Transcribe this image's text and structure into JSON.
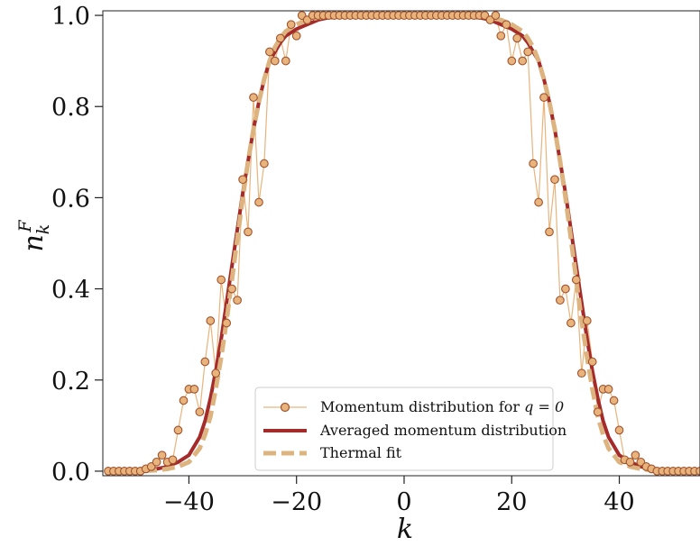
{
  "chart_data": {
    "type": "line",
    "xlabel": "k",
    "ylabel": "n_k^F",
    "xlim": [
      -56,
      55
    ],
    "ylim": [
      -0.01,
      1.01
    ],
    "x_ticks": [
      -40,
      -20,
      0,
      20,
      40
    ],
    "y_ticks": [
      0.0,
      0.2,
      0.4,
      0.6,
      0.8,
      1.0
    ],
    "x_tick_labels": [
      "−40",
      "−20",
      "0",
      "20",
      "40"
    ],
    "y_tick_labels": [
      "0.0",
      "0.2",
      "0.4",
      "0.6",
      "0.8",
      "1.0"
    ],
    "grid": false,
    "legend_position": "lower center",
    "colors": {
      "markers_fill": "#e8b47c",
      "markers_edge": "#a0522d",
      "thin_line": "#e8b47c",
      "averaged": "#a52a2a",
      "thermal": "#ddb47f"
    },
    "series": [
      {
        "name": "Momentum distribution for q = 0",
        "legend_label": "Momentum distribution for ",
        "legend_math": "q = 0",
        "style": "markers-line",
        "x": [
          -55,
          -54,
          -53,
          -52,
          -51,
          -50,
          -49,
          -48,
          -47,
          -46,
          -45,
          -44,
          -43,
          -42,
          -41,
          -40,
          -39,
          -38,
          -37,
          -36,
          -35,
          -34,
          -33,
          -32,
          -31,
          -30,
          -29,
          -28,
          -27,
          -26,
          -25,
          -24,
          -23,
          -22,
          -21,
          -20,
          -19,
          -18,
          -17,
          -16,
          -15,
          -14,
          -13,
          -12,
          -11,
          -10,
          -9,
          -8,
          -7,
          -6,
          -5,
          -4,
          -3,
          -2,
          -1,
          0,
          1,
          2,
          3,
          4,
          5,
          6,
          7,
          8,
          9,
          10,
          11,
          12,
          13,
          14,
          15,
          16,
          17,
          18,
          19,
          20,
          21,
          22,
          23,
          24,
          25,
          26,
          27,
          28,
          29,
          30,
          31,
          32,
          33,
          34,
          35,
          36,
          37,
          38,
          39,
          40,
          41,
          42,
          43,
          44,
          45,
          46,
          47,
          48,
          49,
          50,
          51,
          52,
          53,
          54,
          55
        ],
        "y": [
          0.0,
          0.0,
          0.0,
          0.0,
          0.0,
          0.0,
          0.0,
          0.005,
          0.01,
          0.02,
          0.035,
          0.02,
          0.025,
          0.09,
          0.155,
          0.18,
          0.18,
          0.13,
          0.24,
          0.33,
          0.215,
          0.42,
          0.325,
          0.4,
          0.375,
          0.64,
          0.525,
          0.82,
          0.59,
          0.675,
          0.92,
          0.9,
          0.95,
          0.9,
          0.98,
          0.955,
          1.0,
          0.99,
          1.0,
          1.0,
          1.0,
          1.0,
          1.0,
          1.0,
          1.0,
          1.0,
          1.0,
          1.0,
          1.0,
          1.0,
          1.0,
          1.0,
          1.0,
          1.0,
          1.0,
          1.0,
          1.0,
          1.0,
          1.0,
          1.0,
          1.0,
          1.0,
          1.0,
          1.0,
          1.0,
          1.0,
          1.0,
          1.0,
          1.0,
          1.0,
          1.0,
          0.99,
          1.0,
          0.955,
          0.98,
          0.9,
          0.95,
          0.9,
          0.92,
          0.675,
          0.59,
          0.82,
          0.525,
          0.64,
          0.375,
          0.4,
          0.325,
          0.42,
          0.215,
          0.33,
          0.24,
          0.13,
          0.18,
          0.18,
          0.155,
          0.09,
          0.025,
          0.02,
          0.035,
          0.02,
          0.01,
          0.005,
          0.0,
          0.0,
          0.0,
          0.0,
          0.0,
          0.0,
          0.0,
          0.0,
          0.0
        ]
      },
      {
        "name": "Averaged momentum distribution",
        "style": "thick-solid",
        "x": [
          -55,
          -50,
          -46,
          -44,
          -42,
          -40,
          -38,
          -37,
          -36,
          -35,
          -34,
          -33,
          -32,
          -31,
          -30,
          -29,
          -28,
          -27,
          -26,
          -25,
          -24,
          -23,
          -22,
          -20,
          -18,
          -16,
          -14,
          -10,
          0,
          10,
          14,
          16,
          18,
          20,
          22,
          23,
          24,
          25,
          26,
          27,
          28,
          29,
          30,
          31,
          32,
          33,
          34,
          35,
          36,
          37,
          38,
          40,
          42,
          44,
          46,
          50,
          55
        ],
        "y": [
          0.0,
          0.0,
          0.005,
          0.01,
          0.02,
          0.035,
          0.075,
          0.11,
          0.16,
          0.22,
          0.29,
          0.37,
          0.45,
          0.53,
          0.61,
          0.68,
          0.75,
          0.81,
          0.86,
          0.9,
          0.92,
          0.94,
          0.955,
          0.97,
          0.98,
          0.99,
          0.995,
          0.998,
          1.0,
          0.998,
          0.995,
          0.99,
          0.98,
          0.97,
          0.955,
          0.94,
          0.92,
          0.9,
          0.86,
          0.81,
          0.75,
          0.68,
          0.61,
          0.53,
          0.45,
          0.37,
          0.29,
          0.22,
          0.16,
          0.11,
          0.075,
          0.035,
          0.02,
          0.01,
          0.005,
          0.0,
          0.0
        ]
      },
      {
        "name": "Thermal fit",
        "style": "thick-dashed",
        "x": [
          -55,
          -50,
          -46,
          -44,
          -42,
          -40,
          -38,
          -37,
          -36,
          -35,
          -34,
          -33,
          -32,
          -31,
          -30,
          -29,
          -28,
          -27,
          -26,
          -25,
          -24,
          -23,
          -22,
          -20,
          -18,
          -16,
          -14,
          -10,
          0,
          10,
          14,
          16,
          18,
          20,
          22,
          23,
          24,
          25,
          26,
          27,
          28,
          29,
          30,
          31,
          32,
          33,
          34,
          35,
          36,
          37,
          38,
          40,
          42,
          44,
          46,
          50,
          55
        ],
        "y": [
          0.0,
          0.0,
          0.002,
          0.005,
          0.01,
          0.02,
          0.05,
          0.08,
          0.12,
          0.18,
          0.25,
          0.33,
          0.42,
          0.51,
          0.6,
          0.68,
          0.75,
          0.81,
          0.86,
          0.9,
          0.93,
          0.95,
          0.965,
          0.98,
          0.99,
          0.995,
          0.998,
          0.999,
          1.0,
          0.999,
          0.998,
          0.995,
          0.99,
          0.98,
          0.965,
          0.95,
          0.93,
          0.9,
          0.86,
          0.81,
          0.75,
          0.68,
          0.6,
          0.51,
          0.42,
          0.33,
          0.25,
          0.18,
          0.12,
          0.08,
          0.05,
          0.02,
          0.01,
          0.005,
          0.002,
          0.0,
          0.0
        ]
      }
    ]
  }
}
